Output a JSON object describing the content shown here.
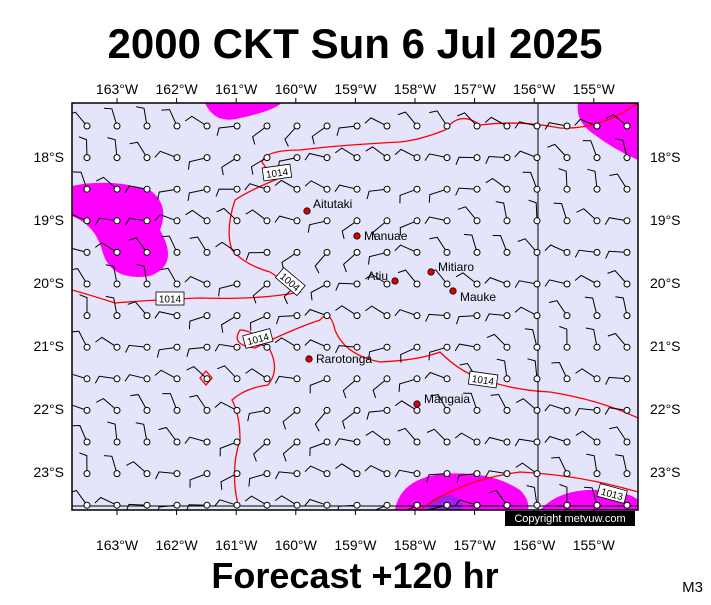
{
  "header": {
    "title": "2000 CKT Sun 6 Jul 2025"
  },
  "map": {
    "lon_labels": [
      "163°W",
      "162°W",
      "161°W",
      "160°W",
      "159°W",
      "158°W",
      "157°W",
      "156°W",
      "155°W"
    ],
    "lat_labels": [
      "18°S",
      "19°S",
      "20°S",
      "21°S",
      "22°S",
      "23°S"
    ],
    "places": [
      "Aitutaki",
      "Manuae",
      "Atiu",
      "Mitiaro",
      "Mauke",
      "Rarotonga",
      "Mangaia"
    ],
    "isobar_labels": [
      "1014",
      "1014",
      "1004",
      "1014",
      "1014",
      "1013"
    ],
    "copyright": "Copyright metvuw.com"
  },
  "footer": {
    "caption": "Forecast +120 hr",
    "code": "M3"
  }
}
